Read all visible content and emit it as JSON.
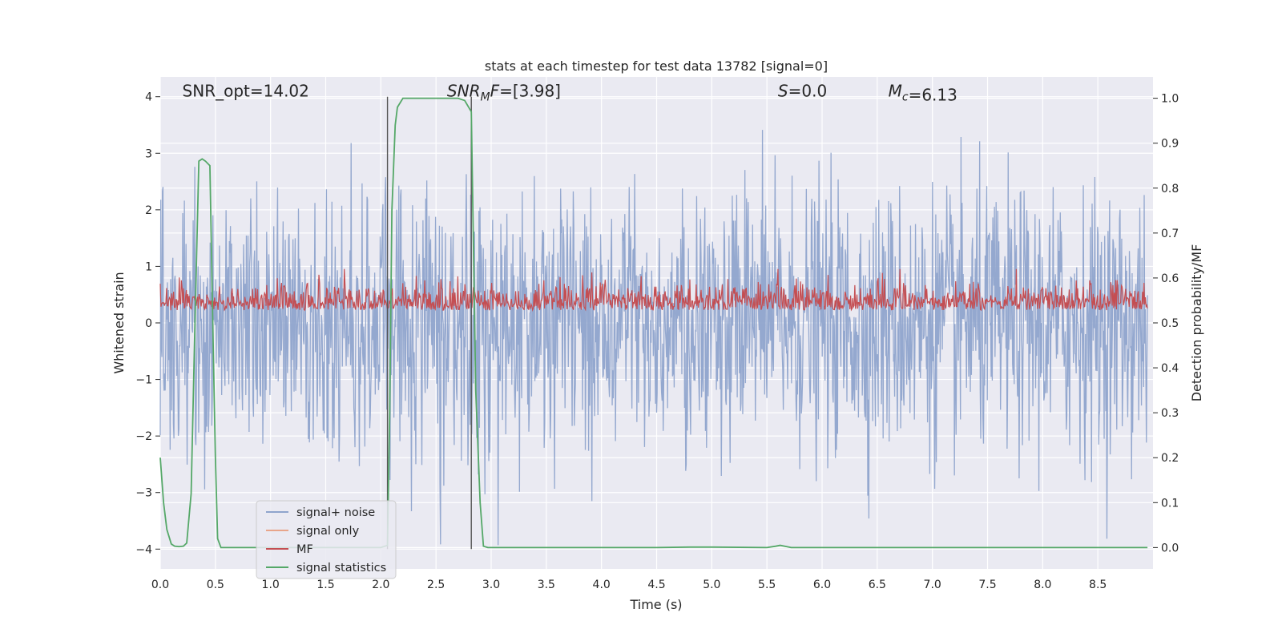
{
  "chart_data": {
    "type": "line",
    "title": "stats at each timestep for test data 13782 [signal=0]",
    "xlabel": "Time (s)",
    "ylabel_left": "Whitened strain",
    "ylabel_right": "Detection probability/MF",
    "xlim": [
      0.0,
      9.0
    ],
    "ylim_left": [
      -4.35,
      4.35
    ],
    "ylim_right": [
      -0.0475,
      1.0475
    ],
    "x_ticks": [
      "0.0",
      "0.5",
      "1.0",
      "1.5",
      "2.0",
      "2.5",
      "3.0",
      "3.5",
      "4.0",
      "4.5",
      "5.0",
      "5.5",
      "6.0",
      "6.5",
      "7.0",
      "7.5",
      "8.0",
      "8.5"
    ],
    "y_ticks_left": [
      "−4",
      "−3",
      "−2",
      "−1",
      "0",
      "1",
      "2",
      "3",
      "4"
    ],
    "y_ticks_right": [
      "0.0",
      "0.1",
      "0.2",
      "0.3",
      "0.4",
      "0.5",
      "0.6",
      "0.7",
      "0.8",
      "0.9",
      "1.0"
    ],
    "grid": true,
    "legend_position": "lower-left",
    "annotations": [
      {
        "text": "SNR_opt=14.02",
        "x": 0.2,
        "y": 4.1,
        "style": "normal"
      },
      {
        "text": "SNR_MF=[3.98]",
        "x": 2.6,
        "y": 4.1,
        "style": "math"
      },
      {
        "text": "S=0.0",
        "x": 5.6,
        "y": 4.1,
        "style": "math"
      },
      {
        "text": "M_c=6.13",
        "x": 6.6,
        "y": 4.1,
        "style": "math"
      }
    ],
    "vertical_lines": [
      {
        "x": 2.06,
        "y_range": [
          -4.0,
          4.0
        ],
        "color": "#555555"
      },
      {
        "x": 2.82,
        "y_range": [
          -4.0,
          4.0
        ],
        "color": "#555555"
      }
    ],
    "series": [
      {
        "name": "signal+ noise",
        "axis": "left",
        "color": "#8fa4cc",
        "description_range": [
          -4.0,
          3.9
        ],
        "typical_band": [
          -2.6,
          2.6
        ],
        "sampling": "dense noise"
      },
      {
        "name": "signal only",
        "axis": "left",
        "color": "#e8a58a",
        "values": []
      },
      {
        "name": "MF",
        "axis": "right",
        "color": "#c44e52",
        "typical_band": [
          0.505,
          0.59
        ],
        "peak": 0.62,
        "sampling": "dense noise"
      },
      {
        "name": "signal statistics",
        "axis": "right",
        "color": "#55a868",
        "x": [
          0.0,
          0.03,
          0.06,
          0.1,
          0.13,
          0.17,
          0.21,
          0.24,
          0.28,
          0.31,
          0.35,
          0.38,
          0.41,
          0.45,
          0.48,
          0.5,
          0.52,
          0.55,
          0.7,
          1.0,
          1.5,
          1.9,
          2.0,
          2.06,
          2.08,
          2.1,
          2.13,
          2.15,
          2.2,
          2.3,
          2.5,
          2.7,
          2.76,
          2.82,
          2.86,
          2.9,
          2.93,
          2.97,
          3.0,
          3.5,
          4.0,
          4.5,
          4.8,
          5.0,
          5.5,
          5.58,
          5.62,
          5.72,
          6.0,
          6.5,
          7.0,
          7.5,
          8.0,
          8.5,
          8.95
        ],
        "y": [
          0.2,
          0.1,
          0.04,
          0.008,
          0.003,
          0.002,
          0.003,
          0.01,
          0.12,
          0.45,
          0.86,
          0.865,
          0.86,
          0.85,
          0.45,
          0.2,
          0.02,
          0.0,
          0.0,
          0.0,
          0.0,
          0.0,
          0.0,
          0.005,
          0.3,
          0.75,
          0.94,
          0.98,
          1.0,
          1.0,
          1.0,
          1.0,
          0.995,
          0.97,
          0.35,
          0.1,
          0.003,
          0.0,
          0.0,
          0.0,
          0.0,
          0.0,
          0.001,
          0.001,
          0.0,
          0.003,
          0.005,
          0.0,
          0.0,
          0.0,
          0.0,
          0.0,
          0.0,
          0.0,
          0.0
        ]
      }
    ],
    "background_color": "#eaeaf2",
    "grid_color": "#ffffff"
  }
}
